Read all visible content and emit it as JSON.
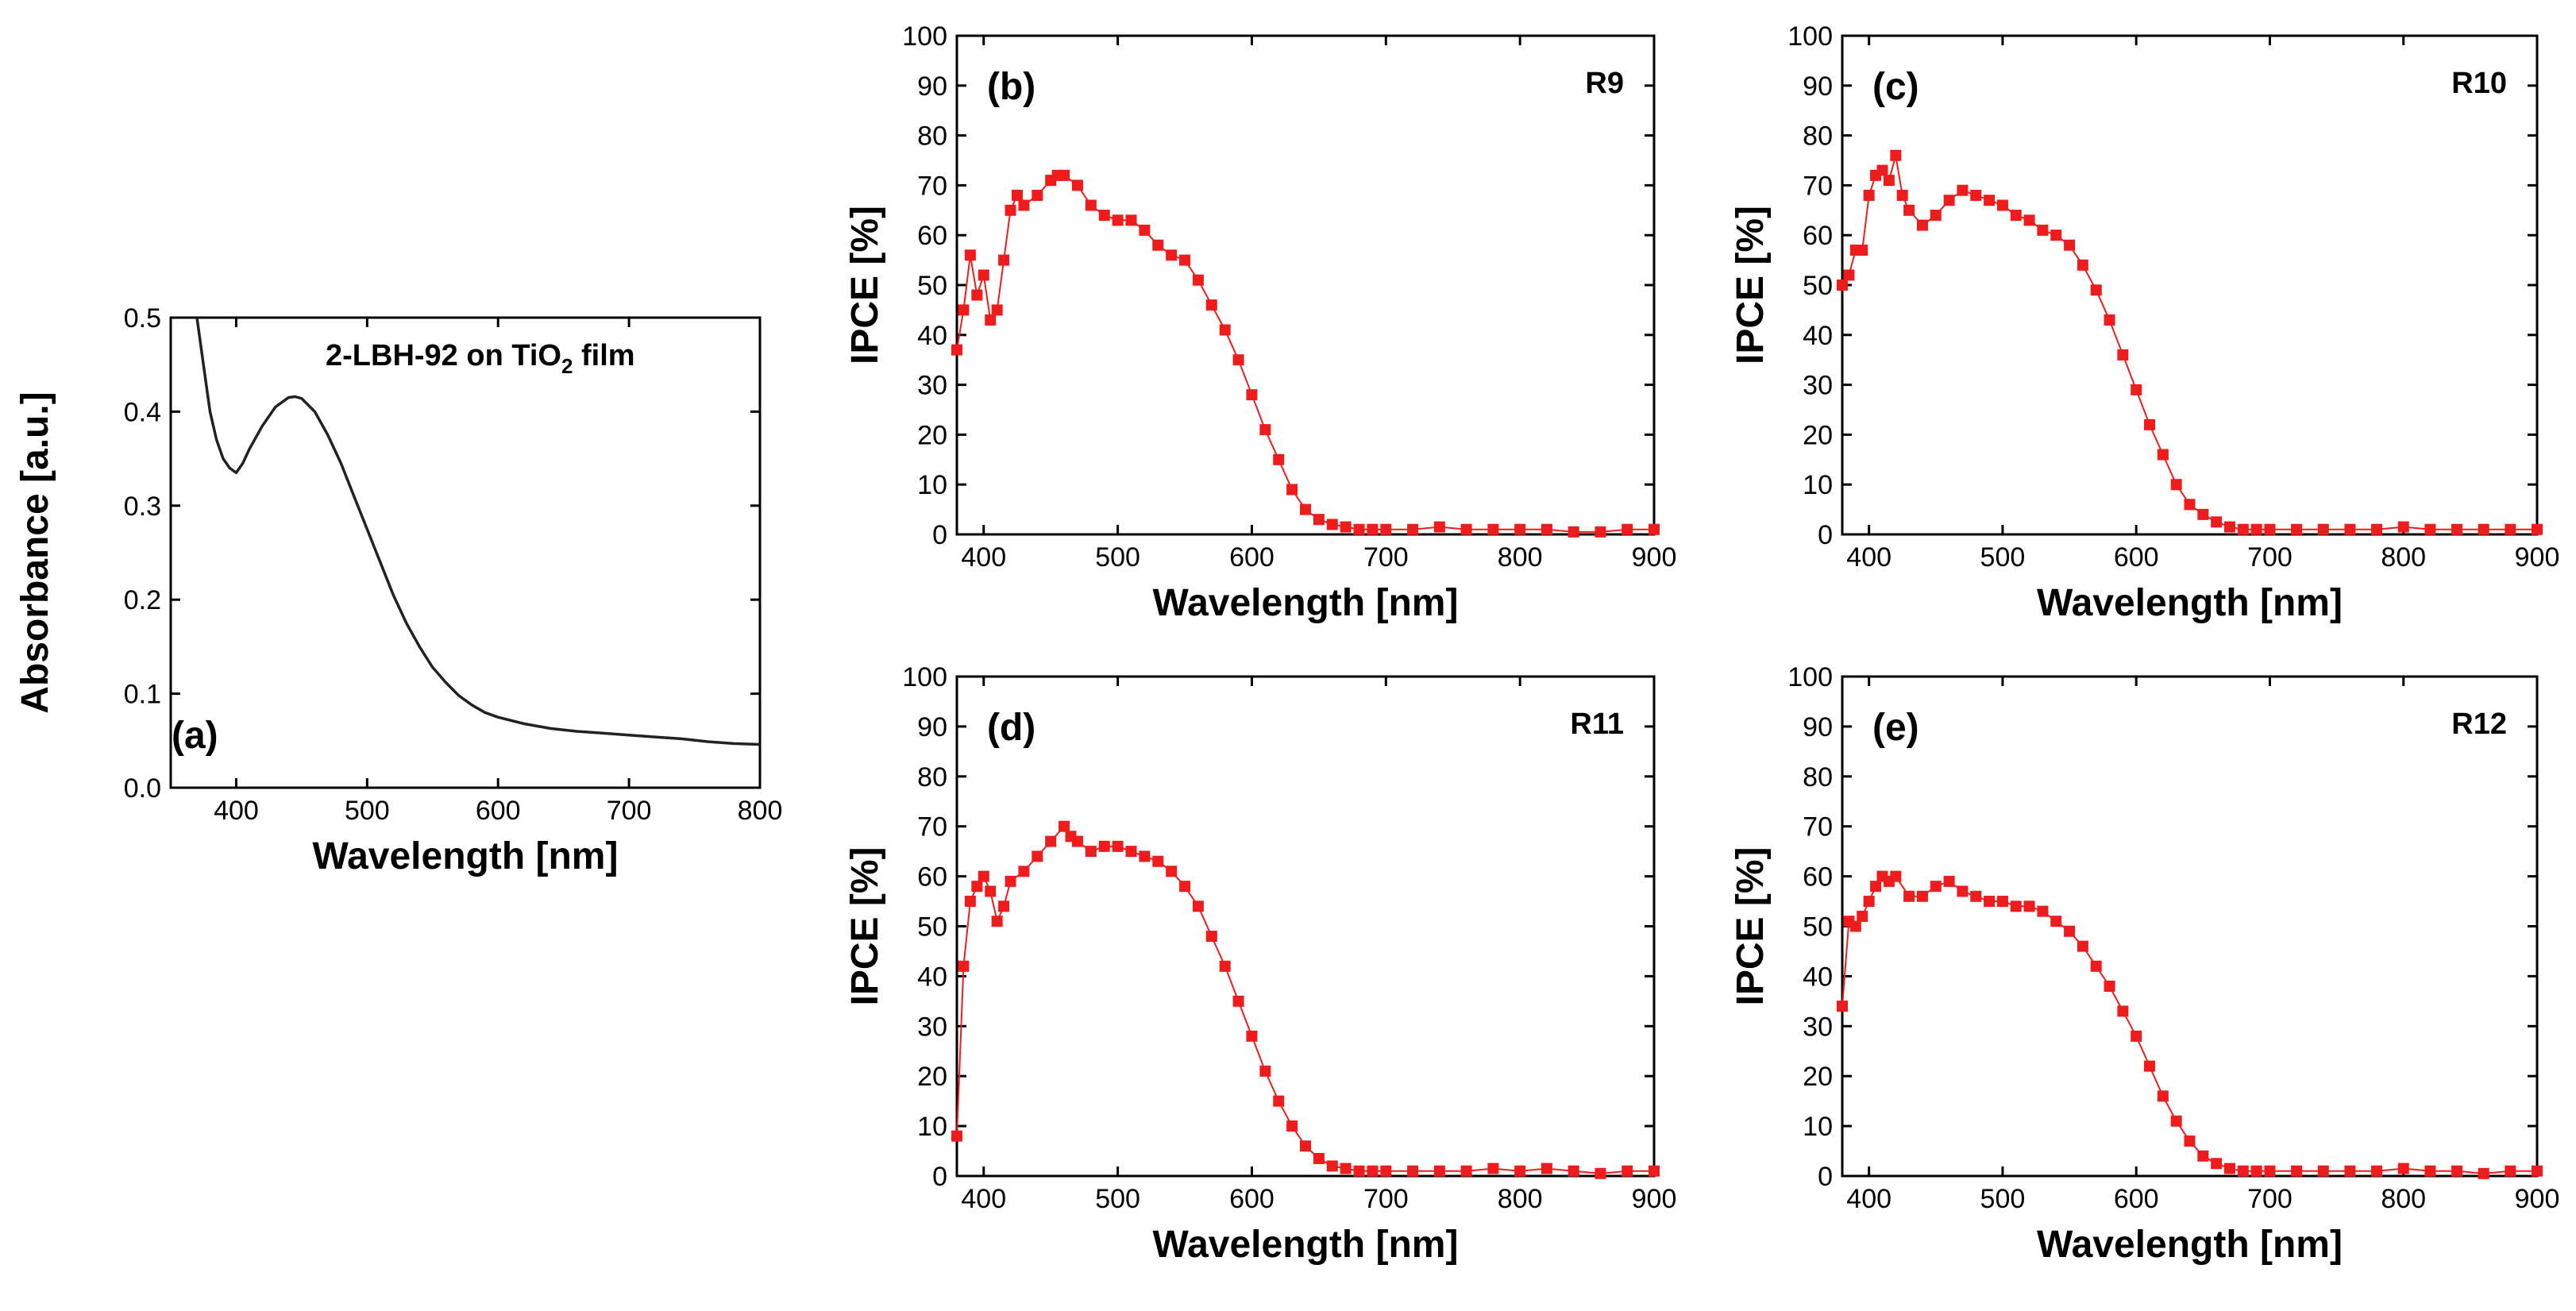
{
  "colors": {
    "series": "#ee1c1c",
    "absorbance": "#222222",
    "axis": "#000000"
  },
  "chart_data": [
    {
      "id": "a",
      "type": "line",
      "panel_label": "(a)",
      "annotation": {
        "main": "2-LBH-92 on TiO",
        "sub": "2",
        "tail": " film"
      },
      "xlabel": "Wavelength [nm]",
      "ylabel": "Absorbance [a.u.]",
      "xlim": [
        350,
        800
      ],
      "ylim": [
        0,
        0.5
      ],
      "xticks": [
        400,
        500,
        600,
        700,
        800
      ],
      "yticks": [
        0.0,
        0.1,
        0.2,
        0.3,
        0.4,
        0.5
      ],
      "ytick_labels": [
        "0.0",
        "0.1",
        "0.2",
        "0.3",
        "0.4",
        "0.5"
      ],
      "series": [
        {
          "name": "2-LBH-92 on TiO2 film",
          "x": [
            370,
            375,
            380,
            385,
            390,
            395,
            400,
            405,
            410,
            420,
            430,
            440,
            445,
            450,
            460,
            470,
            480,
            490,
            500,
            510,
            520,
            530,
            540,
            550,
            560,
            570,
            580,
            590,
            600,
            620,
            640,
            660,
            680,
            700,
            720,
            740,
            760,
            780,
            800
          ],
          "y": [
            0.5,
            0.45,
            0.4,
            0.37,
            0.35,
            0.34,
            0.335,
            0.345,
            0.36,
            0.385,
            0.405,
            0.415,
            0.416,
            0.414,
            0.4,
            0.375,
            0.345,
            0.31,
            0.275,
            0.24,
            0.205,
            0.175,
            0.15,
            0.128,
            0.112,
            0.098,
            0.088,
            0.08,
            0.075,
            0.068,
            0.063,
            0.06,
            0.058,
            0.056,
            0.054,
            0.052,
            0.049,
            0.047,
            0.046
          ]
        }
      ]
    },
    {
      "id": "b",
      "type": "line",
      "panel_label": "(b)",
      "run_label": "R9",
      "xlabel": "Wavelength [nm]",
      "ylabel": "IPCE [%]",
      "xlim": [
        380,
        900
      ],
      "ylim": [
        0,
        100
      ],
      "xticks": [
        400,
        500,
        600,
        700,
        800,
        900
      ],
      "yticks": [
        0,
        10,
        20,
        30,
        40,
        50,
        60,
        70,
        80,
        90,
        100
      ],
      "series": [
        {
          "name": "R9",
          "x": [
            380,
            385,
            390,
            395,
            400,
            405,
            410,
            415,
            420,
            425,
            430,
            440,
            450,
            455,
            460,
            470,
            480,
            490,
            500,
            510,
            520,
            530,
            540,
            550,
            560,
            570,
            580,
            590,
            600,
            610,
            620,
            630,
            640,
            650,
            660,
            670,
            680,
            690,
            700,
            720,
            740,
            760,
            780,
            800,
            820,
            840,
            860,
            880,
            900
          ],
          "y": [
            37,
            45,
            56,
            48,
            52,
            43,
            45,
            55,
            65,
            68,
            66,
            68,
            71,
            72,
            72,
            70,
            66,
            64,
            63,
            63,
            61,
            58,
            56,
            55,
            51,
            46,
            41,
            35,
            28,
            21,
            15,
            9,
            5,
            3,
            2,
            1.5,
            1,
            1,
            1,
            1,
            1.5,
            1,
            1,
            1,
            1,
            0.5,
            0.5,
            1,
            1
          ]
        }
      ]
    },
    {
      "id": "c",
      "type": "line",
      "panel_label": "(c)",
      "run_label": "R10",
      "xlabel": "Wavelength [nm]",
      "ylabel": "IPCE [%]",
      "xlim": [
        380,
        900
      ],
      "ylim": [
        0,
        100
      ],
      "xticks": [
        400,
        500,
        600,
        700,
        800,
        900
      ],
      "yticks": [
        0,
        10,
        20,
        30,
        40,
        50,
        60,
        70,
        80,
        90,
        100
      ],
      "series": [
        {
          "name": "R10",
          "x": [
            380,
            385,
            390,
            395,
            400,
            405,
            410,
            415,
            420,
            425,
            430,
            440,
            450,
            460,
            470,
            480,
            490,
            500,
            510,
            520,
            530,
            540,
            550,
            560,
            570,
            580,
            590,
            600,
            610,
            620,
            630,
            640,
            650,
            660,
            670,
            680,
            690,
            700,
            720,
            740,
            760,
            780,
            800,
            820,
            840,
            860,
            880,
            900
          ],
          "y": [
            50,
            52,
            57,
            57,
            68,
            72,
            73,
            71,
            76,
            68,
            65,
            62,
            64,
            67,
            69,
            68,
            67,
            66,
            64,
            63,
            61,
            60,
            58,
            54,
            49,
            43,
            36,
            29,
            22,
            16,
            10,
            6,
            4,
            2.5,
            1.5,
            1,
            1,
            1,
            1,
            1,
            1,
            1,
            1.5,
            1,
            1,
            1,
            1,
            1
          ]
        }
      ]
    },
    {
      "id": "d",
      "type": "line",
      "panel_label": "(d)",
      "run_label": "R11",
      "xlabel": "Wavelength [nm]",
      "ylabel": "IPCE [%]",
      "xlim": [
        380,
        900
      ],
      "ylim": [
        0,
        100
      ],
      "xticks": [
        400,
        500,
        600,
        700,
        800,
        900
      ],
      "yticks": [
        0,
        10,
        20,
        30,
        40,
        50,
        60,
        70,
        80,
        90,
        100
      ],
      "series": [
        {
          "name": "R11",
          "x": [
            380,
            385,
            390,
            395,
            400,
            405,
            410,
            415,
            420,
            430,
            440,
            450,
            460,
            465,
            470,
            480,
            490,
            500,
            510,
            520,
            530,
            540,
            550,
            560,
            570,
            580,
            590,
            600,
            610,
            620,
            630,
            640,
            650,
            660,
            670,
            680,
            690,
            700,
            720,
            740,
            760,
            780,
            800,
            820,
            840,
            860,
            880,
            900
          ],
          "y": [
            8,
            42,
            55,
            58,
            60,
            57,
            51,
            54,
            59,
            61,
            64,
            67,
            70,
            68,
            67,
            65,
            66,
            66,
            65,
            64,
            63,
            61,
            58,
            54,
            48,
            42,
            35,
            28,
            21,
            15,
            10,
            6,
            3.5,
            2,
            1.5,
            1,
            1,
            1,
            1,
            1,
            1,
            1.5,
            1,
            1.5,
            1,
            0.5,
            1,
            1
          ]
        }
      ]
    },
    {
      "id": "e",
      "type": "line",
      "panel_label": "(e)",
      "run_label": "R12",
      "xlabel": "Wavelength [nm]",
      "ylabel": "IPCE [%]",
      "xlim": [
        380,
        900
      ],
      "ylim": [
        0,
        100
      ],
      "xticks": [
        400,
        500,
        600,
        700,
        800,
        900
      ],
      "yticks": [
        0,
        10,
        20,
        30,
        40,
        50,
        60,
        70,
        80,
        90,
        100
      ],
      "series": [
        {
          "name": "R12",
          "x": [
            380,
            385,
            390,
            395,
            400,
            405,
            410,
            415,
            420,
            430,
            440,
            450,
            460,
            470,
            480,
            490,
            500,
            510,
            520,
            530,
            540,
            550,
            560,
            570,
            580,
            590,
            600,
            610,
            620,
            630,
            640,
            650,
            660,
            670,
            680,
            690,
            700,
            720,
            740,
            760,
            780,
            800,
            820,
            840,
            860,
            880,
            900
          ],
          "y": [
            34,
            51,
            50,
            52,
            55,
            58,
            60,
            59,
            60,
            56,
            56,
            58,
            59,
            57,
            56,
            55,
            55,
            54,
            54,
            53,
            51,
            49,
            46,
            42,
            38,
            33,
            28,
            22,
            16,
            11,
            7,
            4,
            2.5,
            1.5,
            1,
            1,
            1,
            1,
            1,
            1,
            1,
            1.5,
            1,
            1,
            0.5,
            1,
            1
          ]
        }
      ]
    }
  ]
}
